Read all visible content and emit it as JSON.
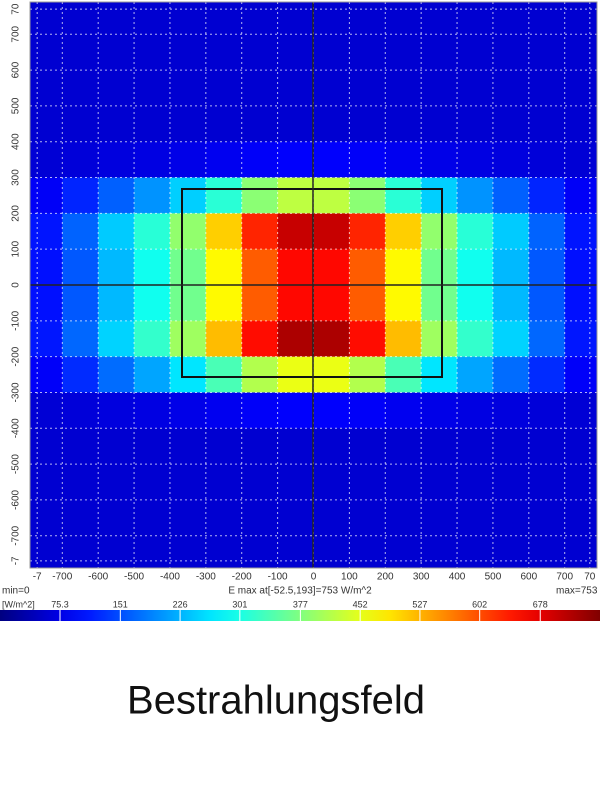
{
  "chart_data": {
    "type": "heatmap",
    "caption": "Bestrahlungsfeld",
    "min_label": "min=0",
    "max_info": "E max at[-52.5,193]=753 W/m^2",
    "max_label": "max=753",
    "unit_label": "[W/m^2]",
    "colormap": "jet",
    "zlim": [
      0,
      753
    ],
    "colorbar_ticks": [
      75.3,
      151,
      226,
      301,
      377,
      452,
      527,
      602,
      678
    ],
    "xlim": [
      -790,
      790
    ],
    "ylim": [
      -790,
      790
    ],
    "xticks": [
      {
        "value": -770,
        "label": "-7"
      },
      -700,
      -600,
      -500,
      -400,
      -300,
      -200,
      -100,
      0,
      100,
      200,
      300,
      400,
      500,
      600,
      700,
      {
        "value": 770,
        "label": "70"
      }
    ],
    "yticks": [
      {
        "value": -770,
        "label": "-7"
      },
      -700,
      -600,
      -500,
      -400,
      -300,
      -200,
      -100,
      0,
      100,
      200,
      300,
      400,
      500,
      600,
      700,
      {
        "value": 770,
        "label": "70"
      }
    ],
    "grid": true,
    "x": [
      -750,
      -650,
      -550,
      -450,
      -350,
      -250,
      -150,
      -50,
      50,
      150,
      250,
      350,
      450,
      550,
      650,
      750
    ],
    "y": [
      750,
      650,
      550,
      450,
      350,
      250,
      150,
      50,
      -50,
      -150,
      -250,
      -350,
      -450,
      -550,
      -650,
      -750
    ],
    "z": [
      [
        60,
        60,
        60,
        60,
        60,
        60,
        60,
        60,
        60,
        60,
        60,
        60,
        60,
        60,
        60,
        60
      ],
      [
        60,
        60,
        60,
        60,
        60,
        60,
        60,
        60,
        60,
        60,
        60,
        60,
        60,
        60,
        60,
        60
      ],
      [
        60,
        60,
        60,
        60,
        60,
        60,
        60,
        60,
        60,
        60,
        60,
        60,
        60,
        60,
        60,
        60
      ],
      [
        60,
        60,
        60,
        60,
        60,
        60,
        60,
        60,
        60,
        60,
        60,
        60,
        60,
        60,
        60,
        60
      ],
      [
        63,
        66,
        70,
        73,
        77,
        83,
        90,
        93,
        93,
        90,
        83,
        77,
        73,
        70,
        66,
        63
      ],
      [
        88,
        121,
        165,
        203,
        247,
        313,
        385,
        423,
        423,
        385,
        313,
        247,
        203,
        165,
        121,
        88
      ],
      [
        109,
        167,
        244,
        312,
        390,
        506,
        632,
        700,
        700,
        632,
        506,
        390,
        312,
        244,
        167,
        109
      ],
      [
        105,
        159,
        231,
        294,
        366,
        474,
        591,
        654,
        654,
        591,
        474,
        366,
        294,
        231,
        159,
        105
      ],
      [
        105,
        159,
        231,
        294,
        366,
        474,
        591,
        654,
        654,
        591,
        474,
        366,
        294,
        231,
        159,
        105
      ],
      [
        110,
        170,
        250,
        320,
        400,
        520,
        650,
        720,
        720,
        650,
        520,
        400,
        320,
        250,
        170,
        110
      ],
      [
        90,
        126,
        174,
        216,
        264,
        336,
        414,
        456,
        456,
        414,
        336,
        264,
        216,
        174,
        126,
        90
      ],
      [
        63,
        66,
        70,
        73,
        77,
        83,
        90,
        93,
        93,
        90,
        83,
        77,
        73,
        70,
        66,
        63
      ],
      [
        60,
        60,
        60,
        60,
        60,
        60,
        60,
        60,
        60,
        60,
        60,
        60,
        60,
        60,
        60,
        60
      ],
      [
        60,
        60,
        60,
        60,
        60,
        60,
        60,
        60,
        60,
        60,
        60,
        60,
        60,
        60,
        60,
        60
      ],
      [
        60,
        60,
        60,
        60,
        60,
        60,
        60,
        60,
        60,
        60,
        60,
        60,
        60,
        60,
        60,
        60
      ],
      [
        60,
        60,
        60,
        60,
        60,
        60,
        60,
        60,
        60,
        60,
        60,
        60,
        60,
        60,
        60,
        60
      ]
    ]
  }
}
